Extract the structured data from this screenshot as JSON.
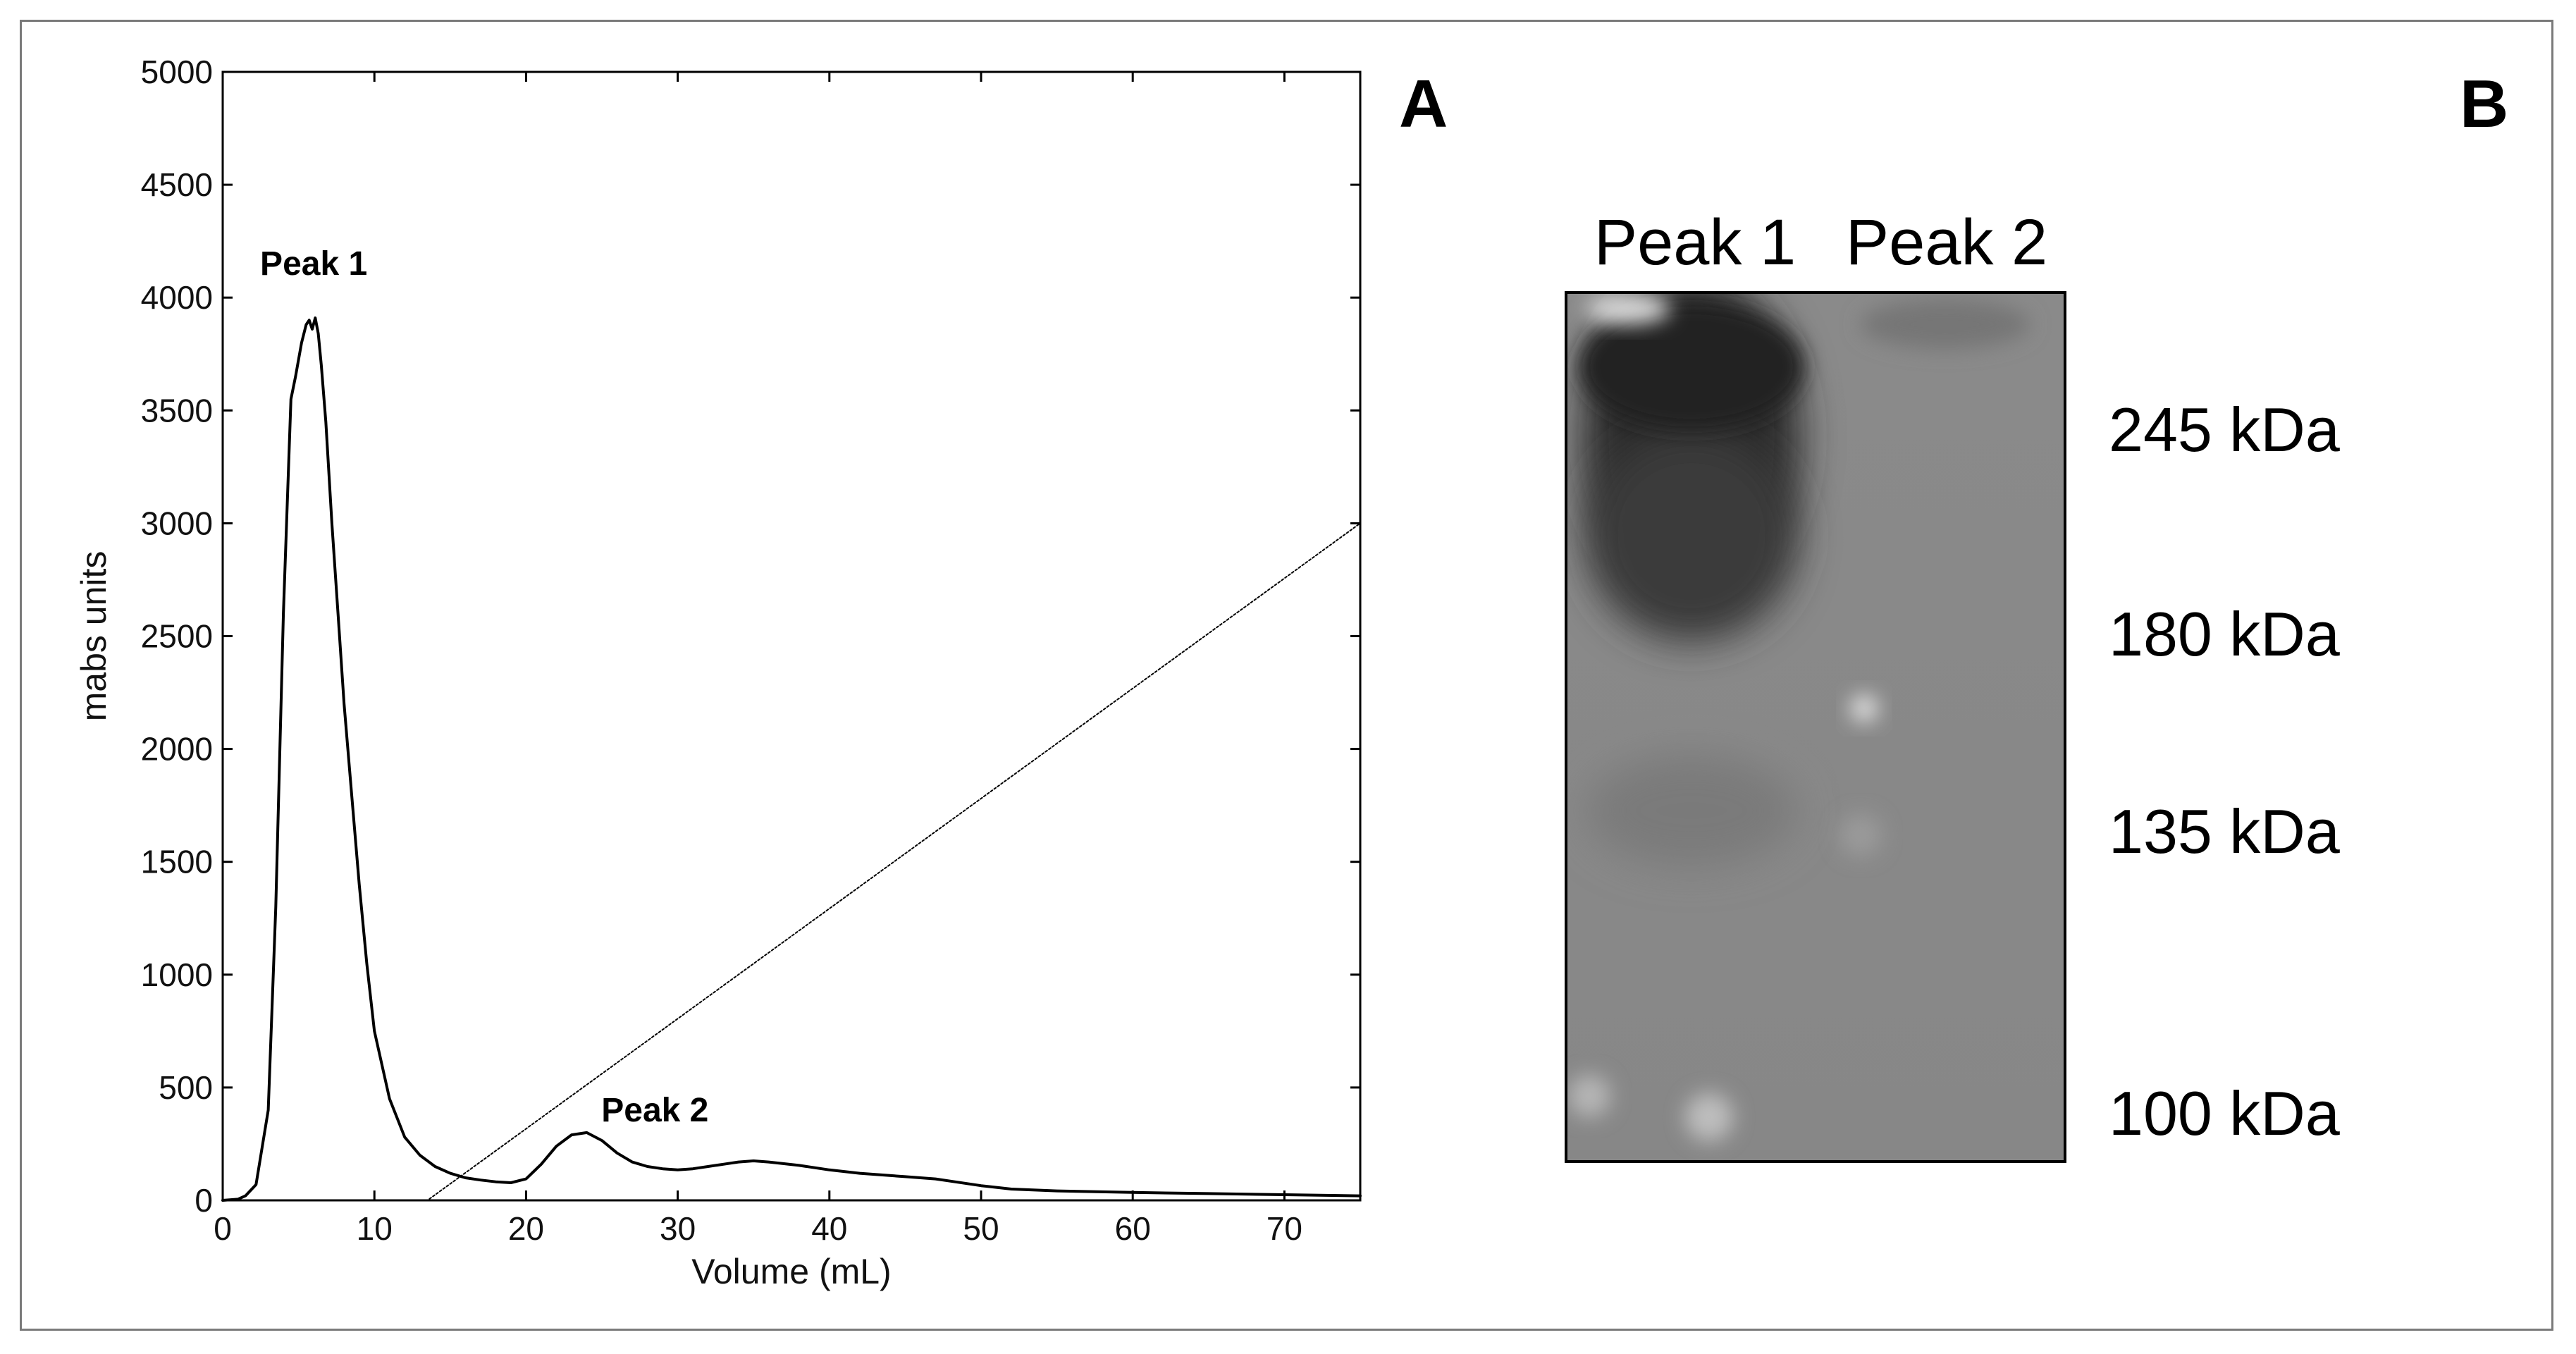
{
  "panels": {
    "a_letter": "A",
    "b_letter": "B"
  },
  "chart_data": {
    "type": "line",
    "xlabel": "Volume (mL)",
    "ylabel": "mabs units",
    "xlim": [
      0,
      75
    ],
    "ylim": [
      0,
      5000
    ],
    "xticks": [
      0,
      10,
      20,
      30,
      40,
      50,
      60,
      70
    ],
    "yticks": [
      0,
      500,
      1000,
      1500,
      2000,
      2500,
      3000,
      3500,
      4000,
      4500,
      5000
    ],
    "grid": false,
    "series": [
      {
        "style": "solid",
        "x": [
          0,
          1,
          1.5,
          2.2,
          3,
          3.5,
          4,
          4.5,
          4.8,
          5.2,
          5.5,
          5.7,
          5.9,
          6.1,
          6.3,
          6.5,
          6.8,
          7.2,
          7.6,
          8,
          8.5,
          9,
          9.5,
          10,
          11,
          12,
          13,
          14,
          15,
          16,
          17,
          18,
          19,
          20,
          21,
          22,
          23,
          24,
          25,
          26,
          27,
          28,
          29,
          30,
          31,
          32,
          33,
          34,
          35,
          36,
          38,
          40,
          42,
          45,
          47,
          48,
          50,
          52,
          55,
          60,
          65,
          70,
          75
        ],
        "y": [
          0,
          5,
          20,
          70,
          400,
          1300,
          2600,
          3550,
          3650,
          3800,
          3880,
          3900,
          3860,
          3910,
          3840,
          3700,
          3450,
          3000,
          2600,
          2200,
          1800,
          1400,
          1050,
          750,
          450,
          280,
          200,
          150,
          120,
          100,
          90,
          82,
          78,
          95,
          160,
          240,
          290,
          300,
          265,
          210,
          170,
          150,
          140,
          135,
          140,
          150,
          160,
          170,
          175,
          170,
          155,
          135,
          120,
          105,
          95,
          85,
          65,
          50,
          42,
          35,
          30,
          25,
          20
        ]
      },
      {
        "style": "dotted",
        "x": [
          0,
          13.5,
          75
        ],
        "y": [
          0,
          0,
          3000
        ]
      }
    ],
    "annotations": [
      {
        "text": "Peak 1",
        "x": 6,
        "y": 4100
      },
      {
        "text": "Peak 2",
        "x": 28.5,
        "y": 350
      }
    ]
  },
  "gel": {
    "lanes": [
      "Peak 1",
      "Peak 2"
    ],
    "markers": [
      "245 kDa",
      "180 kDa",
      "135 kDa",
      "100 kDa"
    ]
  }
}
